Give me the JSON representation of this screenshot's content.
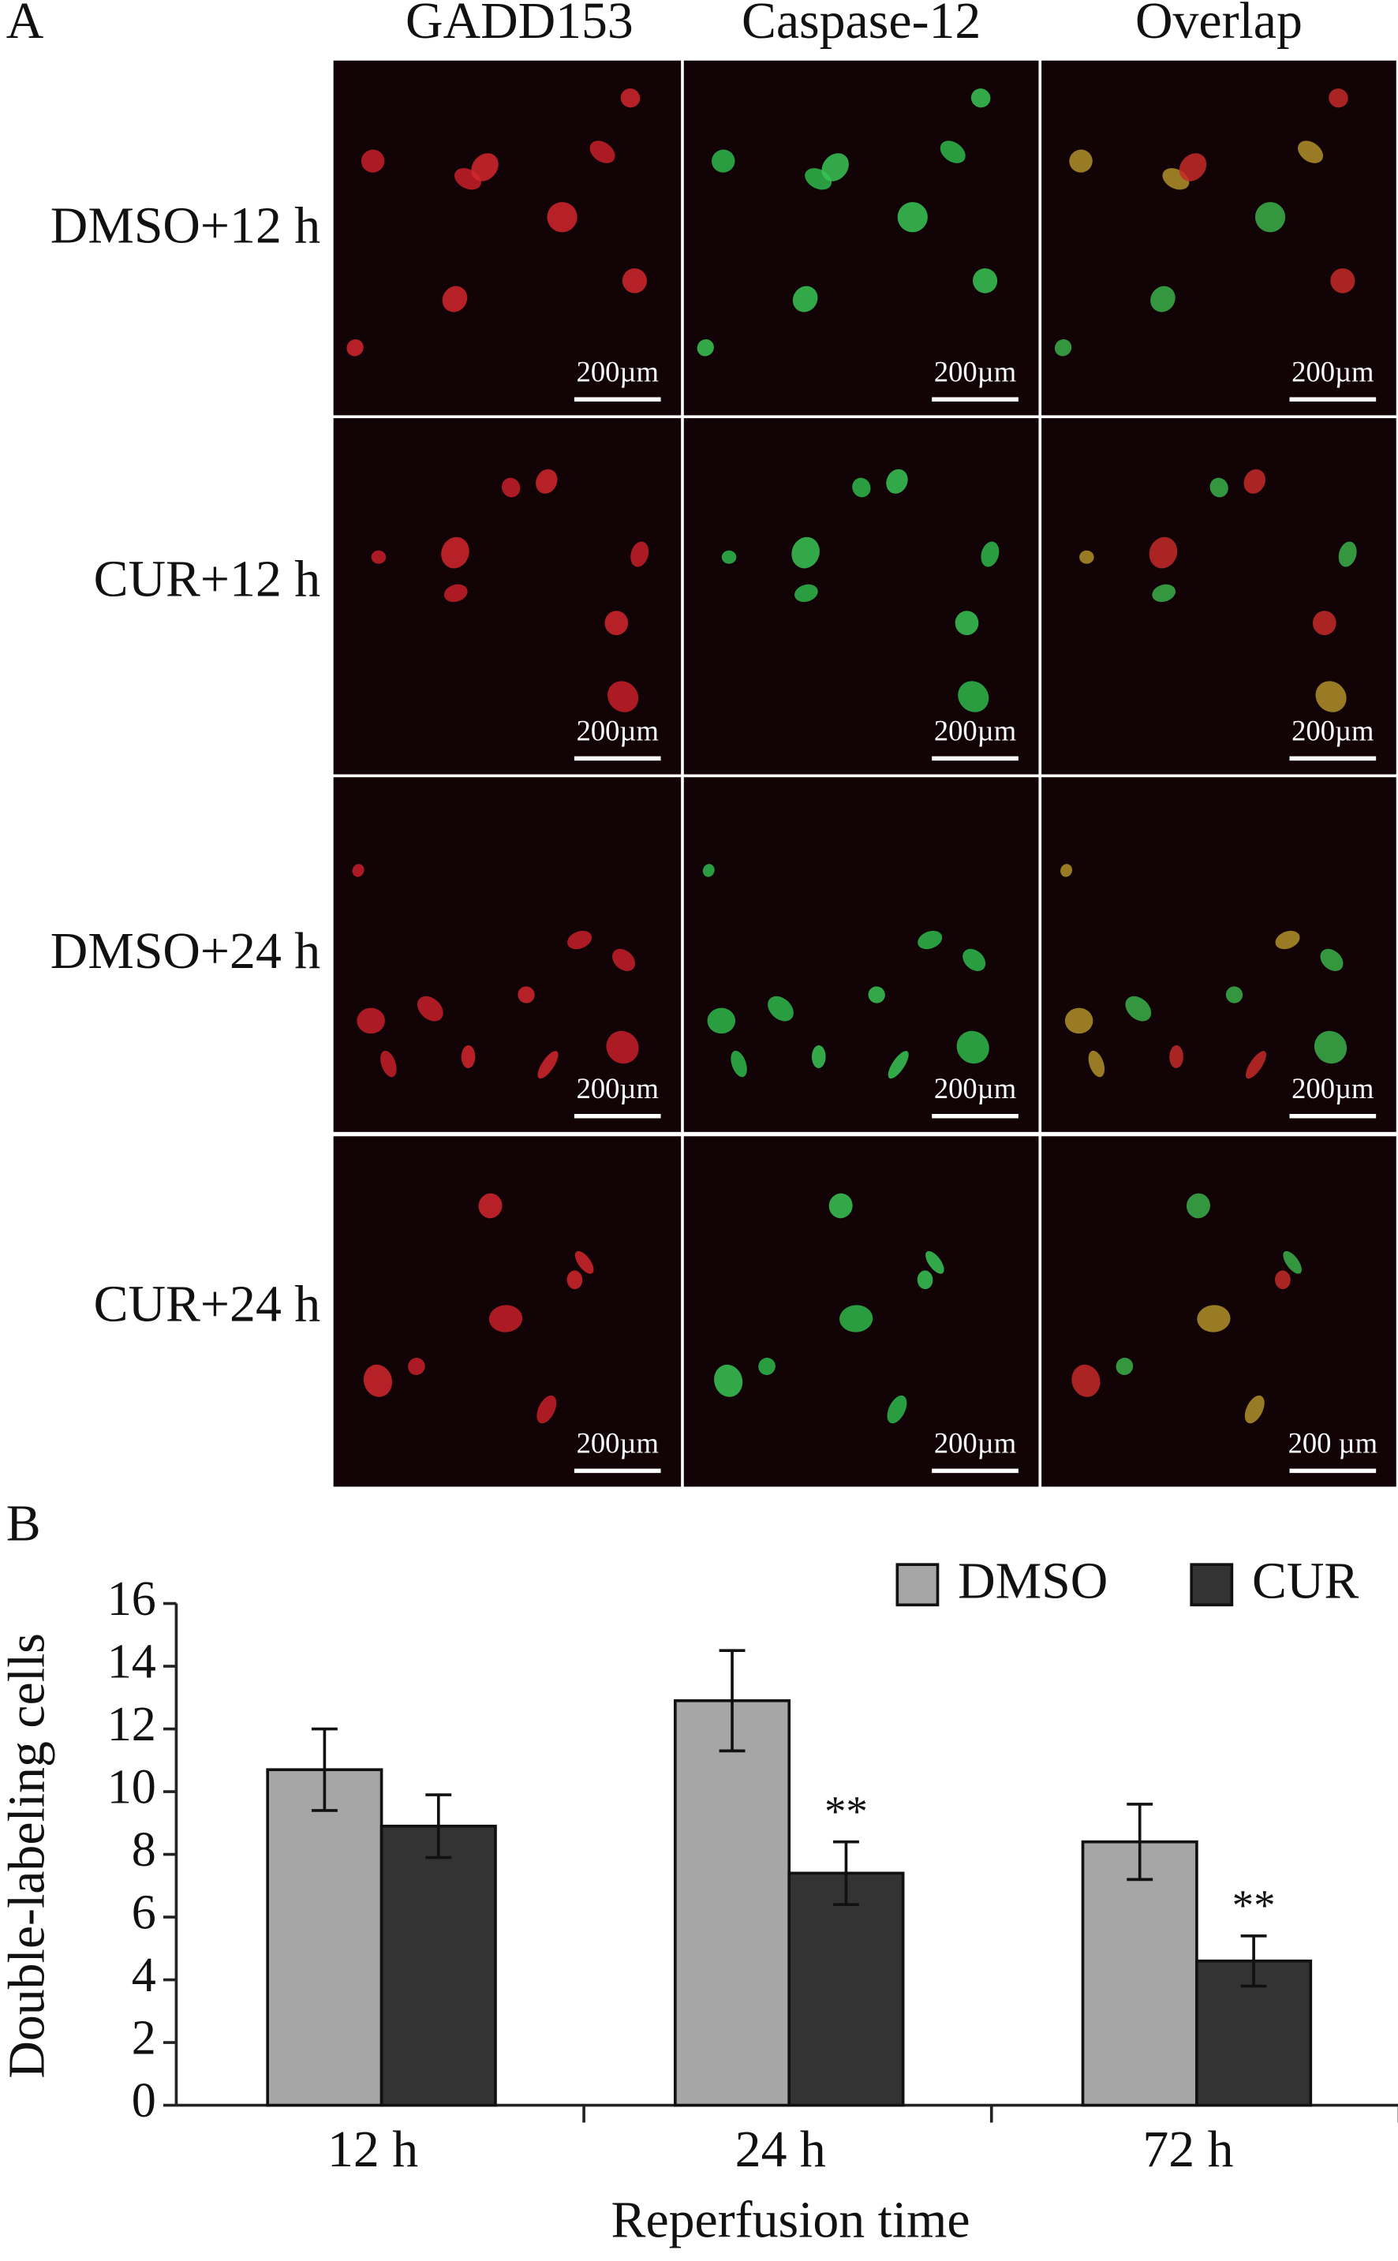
{
  "panel_a": {
    "label": "A",
    "columns": [
      "GADD153",
      "Caspase-12",
      "Overlap"
    ],
    "rows": [
      "DMSO+12 h",
      "CUR+12 h",
      "DMSO+24 h",
      "CUR+24 h"
    ],
    "scale_bars": [
      [
        "200µm",
        "200µm",
        "200µm"
      ],
      [
        "200µm",
        "200µm",
        "200µm"
      ],
      [
        "200µm",
        "200µm",
        "200µm"
      ],
      [
        "200µm",
        "200µm",
        "200 µm"
      ]
    ]
  },
  "chart_data": {
    "type": "bar",
    "panel_label": "B",
    "x_label": "Reperfusion time",
    "y_label": "Double-labeling cells",
    "categories": [
      "12 h",
      "24 h",
      "72 h"
    ],
    "series": [
      {
        "name": "DMSO",
        "color": "#a6a6a6",
        "values": [
          10.7,
          12.9,
          8.4
        ],
        "errors": [
          1.3,
          1.6,
          1.2
        ]
      },
      {
        "name": "CUR",
        "color": "#333333",
        "values": [
          8.9,
          7.4,
          4.6
        ],
        "errors": [
          1.0,
          1.0,
          0.8
        ],
        "significance": [
          null,
          "**",
          "**"
        ]
      }
    ],
    "ylim": [
      0,
      16
    ],
    "yticks": [
      0,
      2,
      4,
      6,
      8,
      10,
      12,
      14,
      16
    ],
    "legend": "top-right"
  }
}
